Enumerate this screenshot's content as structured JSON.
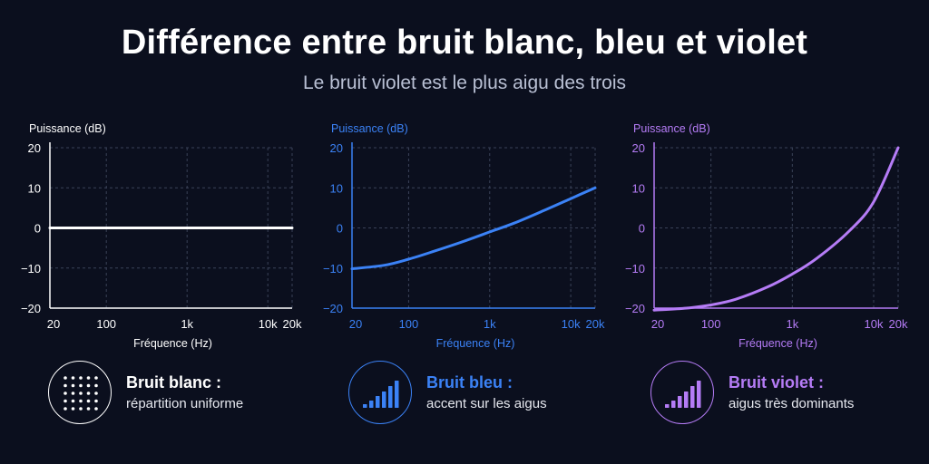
{
  "header": {
    "title": "Différence entre bruit blanc, bleu et violet",
    "subtitle": "Le bruit violet est le plus aigu des trois"
  },
  "chart_data": [
    {
      "type": "line",
      "name": "white",
      "color": "#ffffff",
      "ylabel": "Puissance (dB)",
      "xlabel": "Fréquence (Hz)",
      "x_scale": "log",
      "xlim": [
        20,
        20000
      ],
      "ylim": [
        -20,
        20
      ],
      "x_ticks": [
        20,
        100,
        1000,
        10000,
        20000
      ],
      "x_tick_labels": [
        "20",
        "100",
        "1k",
        "10k",
        "20k"
      ],
      "y_ticks": [
        20,
        10,
        0,
        -10,
        -20
      ],
      "y_tick_labels": [
        "20",
        "10",
        "0",
        "−10",
        "−20"
      ],
      "grid": true,
      "x": [
        20,
        50,
        100,
        200,
        500,
        1000,
        2000,
        5000,
        10000,
        20000
      ],
      "y": [
        0,
        0,
        0,
        0,
        0,
        0,
        0,
        0,
        0,
        0
      ]
    },
    {
      "type": "line",
      "name": "blue",
      "color": "#3b82f6",
      "ylabel": "Puissance (dB)",
      "xlabel": "Fréquence (Hz)",
      "x_scale": "log",
      "xlim": [
        20,
        20000
      ],
      "ylim": [
        -20,
        20
      ],
      "x_ticks": [
        20,
        100,
        1000,
        10000,
        20000
      ],
      "x_tick_labels": [
        "20",
        "100",
        "1k",
        "10k",
        "20k"
      ],
      "y_ticks": [
        20,
        10,
        0,
        -10,
        -20
      ],
      "y_tick_labels": [
        "20",
        "10",
        "0",
        "−10",
        "−20"
      ],
      "grid": true,
      "x": [
        20,
        50,
        100,
        200,
        500,
        1000,
        2000,
        5000,
        10000,
        20000
      ],
      "y": [
        -10.2,
        -9.3,
        -7.8,
        -5.9,
        -3.2,
        -1.0,
        1.2,
        4.6,
        7.3,
        10.0
      ]
    },
    {
      "type": "line",
      "name": "violet",
      "color": "#b57cf6",
      "ylabel": "Puissance (dB)",
      "xlabel": "Fréquence (Hz)",
      "x_scale": "log",
      "xlim": [
        20,
        20000
      ],
      "ylim": [
        -20,
        20
      ],
      "x_ticks": [
        20,
        100,
        1000,
        10000,
        20000
      ],
      "x_tick_labels": [
        "20",
        "100",
        "1k",
        "10k",
        "20k"
      ],
      "y_ticks": [
        20,
        10,
        0,
        -10,
        -20
      ],
      "y_tick_labels": [
        "20",
        "10",
        "0",
        "−10",
        "−20"
      ],
      "grid": true,
      "x": [
        20,
        50,
        100,
        200,
        500,
        1000,
        2000,
        5000,
        10000,
        20000
      ],
      "y": [
        -20.5,
        -20.0,
        -19.2,
        -17.8,
        -14.7,
        -11.5,
        -7.6,
        -0.8,
        6.5,
        20.0
      ]
    }
  ],
  "legend": [
    {
      "title": "Bruit blanc :",
      "description": "répartition uniforme",
      "color": "#ffffff",
      "icon": "dot-grid-icon"
    },
    {
      "title": "Bruit bleu :",
      "description": "accent sur les aigus",
      "color": "#3b82f6",
      "icon": "signal-bars-icon"
    },
    {
      "title": "Bruit violet :",
      "description": "aigus très dominants",
      "color": "#b57cf6",
      "icon": "signal-bars-icon"
    }
  ]
}
